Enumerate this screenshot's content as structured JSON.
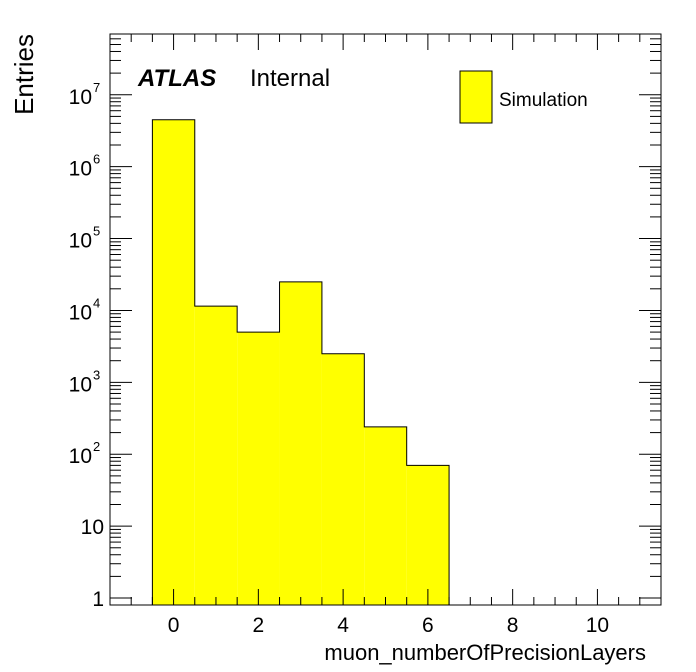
{
  "chart_data": {
    "type": "bar",
    "histogram": true,
    "bin_edges": [
      -0.5,
      0.5,
      1.5,
      2.5,
      3.5,
      4.5,
      5.5,
      6.5
    ],
    "bin_centers": [
      0,
      1,
      2,
      3,
      4,
      5,
      6
    ],
    "values": [
      4500000,
      11500,
      5000,
      25000,
      2500,
      240,
      70
    ],
    "xlabel": "muon_numberOfPrecisionLayers",
    "ylabel": "Entries",
    "xlim": [
      -1.5,
      11.5
    ],
    "ylim": [
      0.8,
      70000000
    ],
    "y_scale": "log",
    "x_ticks": [
      0,
      2,
      4,
      6,
      8,
      10
    ],
    "y_ticks": [
      {
        "value": 1,
        "base": "1",
        "exp": ""
      },
      {
        "value": 10,
        "base": "10",
        "exp": ""
      },
      {
        "value": 100,
        "base": "10",
        "exp": "2"
      },
      {
        "value": 1000,
        "base": "10",
        "exp": "3"
      },
      {
        "value": 10000,
        "base": "10",
        "exp": "4"
      },
      {
        "value": 100000,
        "base": "10",
        "exp": "5"
      },
      {
        "value": 1000000,
        "base": "10",
        "exp": "6"
      },
      {
        "value": 10000000,
        "base": "10",
        "exp": "7"
      }
    ],
    "fill_color": "#ffff00",
    "line_color": "#000000",
    "legend": {
      "position": "top-right",
      "entries": [
        {
          "label": "Simulation",
          "color": "#ffff00"
        }
      ]
    },
    "annotation": {
      "experiment": "ATLAS",
      "status": "Internal"
    },
    "grid": false
  }
}
